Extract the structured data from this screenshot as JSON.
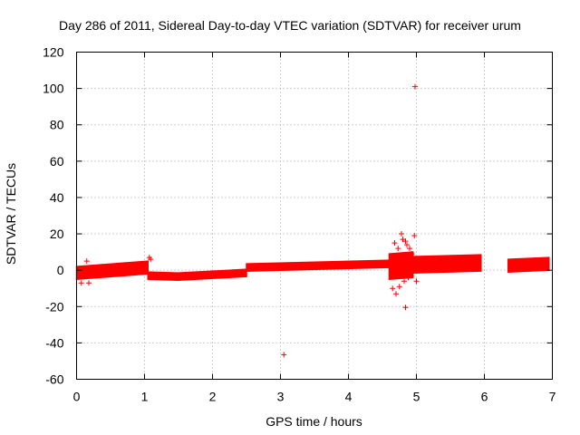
{
  "chart_data": {
    "type": "scatter",
    "title": "Day 286 of 2011, Sidereal Day-to-day VTEC variation (SDTVAR) for receiver urum",
    "xlabel": "GPS time / hours",
    "ylabel": "SDTVAR / TECUs",
    "xlim": [
      0,
      7
    ],
    "ylim": [
      -60,
      120
    ],
    "xticks": [
      0,
      1,
      2,
      3,
      4,
      5,
      6,
      7
    ],
    "yticks": [
      -60,
      -40,
      -20,
      0,
      20,
      40,
      60,
      80,
      100,
      120
    ],
    "xtick_labels": [
      "0",
      "1",
      "2",
      "3",
      "4",
      "5",
      "6",
      "7"
    ],
    "ytick_labels": [
      "-60",
      "-40",
      "-20",
      "0",
      "20",
      "40",
      "60",
      "80",
      "100",
      "120"
    ],
    "grid": true,
    "series": [
      {
        "name": "SDTVAR",
        "color": "#ff0000",
        "marker": "plus",
        "band_segments": [
          {
            "x": [
              0.0,
              1.05
            ],
            "center": [
              -1.5,
              1.5
            ],
            "spread": 3.5
          },
          {
            "x": [
              1.05,
              1.5
            ],
            "center": [
              -3.0,
              -3.5
            ],
            "spread": 2.0
          },
          {
            "x": [
              1.5,
              2.5
            ],
            "center": [
              -3.5,
              -1.5
            ],
            "spread": 2.0
          },
          {
            "x": [
              2.5,
              4.6
            ],
            "center": [
              1.5,
              3.5
            ],
            "spread": 2.0
          },
          {
            "x": [
              4.6,
              4.95
            ],
            "center": [
              2.0,
              3.0
            ],
            "spread": 7.0
          },
          {
            "x": [
              4.95,
              5.95
            ],
            "center": [
              3.0,
              4.0
            ],
            "spread": 4.5
          },
          {
            "x": [
              6.35,
              6.95
            ],
            "center": [
              2.5,
              3.5
            ],
            "spread": 3.5
          }
        ],
        "points": [
          {
            "x": 0.07,
            "y": -7
          },
          {
            "x": 0.15,
            "y": 5
          },
          {
            "x": 0.18,
            "y": -7
          },
          {
            "x": 1.07,
            "y": 7
          },
          {
            "x": 1.09,
            "y": 6
          },
          {
            "x": 4.65,
            "y": -10
          },
          {
            "x": 4.68,
            "y": 15
          },
          {
            "x": 4.7,
            "y": -13
          },
          {
            "x": 4.73,
            "y": 12
          },
          {
            "x": 4.75,
            "y": -9
          },
          {
            "x": 4.78,
            "y": 20
          },
          {
            "x": 4.8,
            "y": 17
          },
          {
            "x": 4.82,
            "y": -6
          },
          {
            "x": 4.84,
            "y": 16
          },
          {
            "x": 4.86,
            "y": 14
          },
          {
            "x": 4.88,
            "y": -4
          },
          {
            "x": 4.9,
            "y": 12
          },
          {
            "x": 4.93,
            "y": 9
          },
          {
            "x": 4.97,
            "y": 19
          },
          {
            "x": 5.0,
            "y": -6
          },
          {
            "x": 4.98,
            "y": 101
          },
          {
            "x": 4.84,
            "y": -20.5
          },
          {
            "x": 3.05,
            "y": -46.5
          }
        ]
      }
    ]
  }
}
